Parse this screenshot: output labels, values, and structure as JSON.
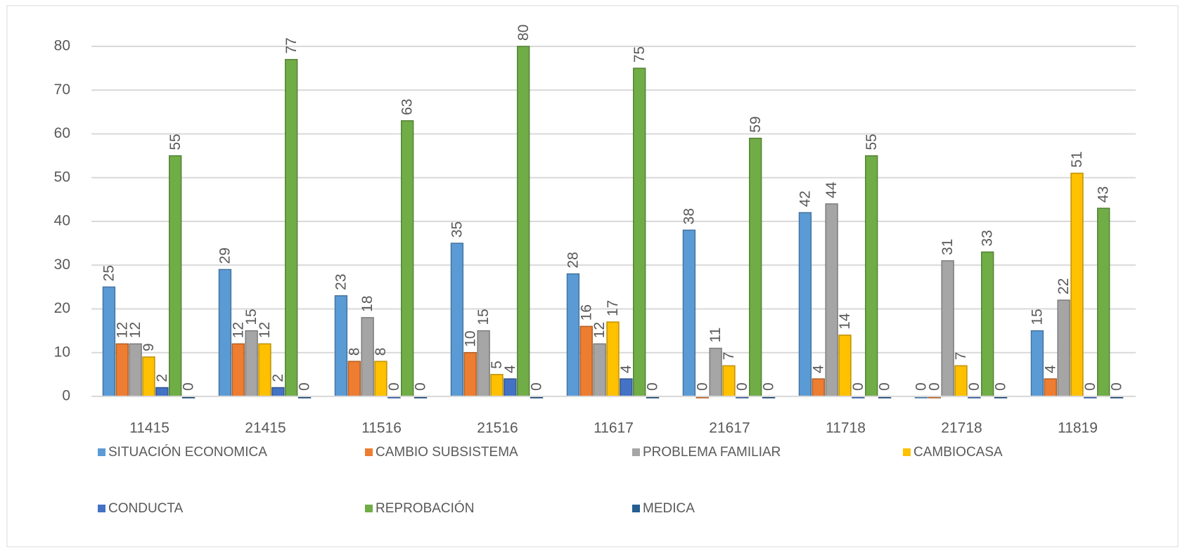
{
  "chart_data": {
    "type": "bar",
    "categories": [
      "11415",
      "21415",
      "11516",
      "21516",
      "11617",
      "21617",
      "11718",
      "21718",
      "11819"
    ],
    "series": [
      {
        "name": "SITUACIÓN ECONOMICA",
        "color": "#5b9bd5",
        "values": [
          25,
          29,
          23,
          35,
          28,
          38,
          42,
          0,
          15
        ]
      },
      {
        "name": "CAMBIO SUBSISTEMA",
        "color": "#ed7d31",
        "values": [
          12,
          12,
          8,
          10,
          16,
          0,
          4,
          0,
          4
        ]
      },
      {
        "name": "PROBLEMA FAMILIAR",
        "color": "#a5a5a5",
        "values": [
          12,
          15,
          18,
          15,
          12,
          11,
          44,
          31,
          22
        ]
      },
      {
        "name": "CAMBIOCASA",
        "color": "#ffc000",
        "values": [
          9,
          12,
          8,
          5,
          17,
          7,
          14,
          7,
          51
        ]
      },
      {
        "name": "CONDUCTA",
        "color": "#4472c4",
        "values": [
          2,
          2,
          0,
          4,
          4,
          0,
          0,
          0,
          0
        ]
      },
      {
        "name": "REPROBACIÓN",
        "color": "#70ad47",
        "values": [
          55,
          77,
          63,
          80,
          75,
          59,
          55,
          33,
          43
        ]
      },
      {
        "name": "MEDICA",
        "color": "#255e91",
        "values": [
          0,
          0,
          0,
          0,
          0,
          0,
          0,
          0,
          0
        ]
      }
    ],
    "ylim": [
      0,
      80
    ],
    "yticks": [
      0,
      10,
      20,
      30,
      40,
      50,
      60,
      70,
      80
    ],
    "grid": true,
    "legend": "bottom"
  }
}
